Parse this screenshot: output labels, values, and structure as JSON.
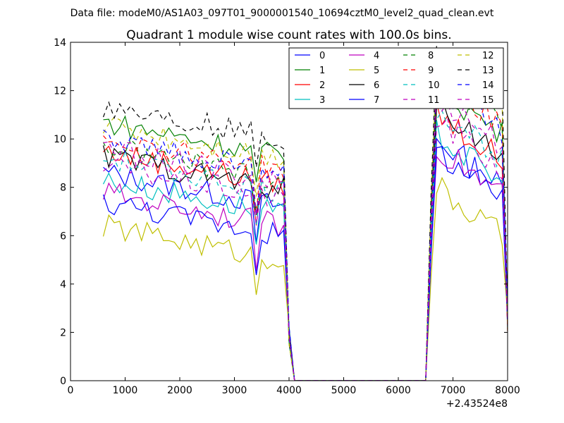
{
  "chart_data": {
    "type": "line",
    "suptitle": "Data file: modeM0/AS1A03_097T01_9000001540_10694cztM0_level2_quad_clean.evt",
    "title": "Quadrant 1 module wise count rates with 100.0s bins.",
    "xlabel": "",
    "ylabel": "",
    "x_offset_label": "+2.43524e8",
    "xlim": [
      0,
      8000
    ],
    "ylim": [
      0,
      14
    ],
    "x_ticks": [
      0,
      1000,
      2000,
      3000,
      4000,
      5000,
      6000,
      7000,
      8000
    ],
    "y_ticks": [
      0,
      2,
      4,
      6,
      8,
      10,
      12,
      14
    ],
    "x_tick_labels": [
      "0",
      "1000",
      "2000",
      "3000",
      "4000",
      "5000",
      "6000",
      "7000",
      "8000"
    ],
    "y_tick_labels": [
      "0",
      "2",
      "4",
      "6",
      "8",
      "10",
      "12",
      "14"
    ],
    "legend_position": "top-right",
    "legend_columns": 4,
    "x": [
      600,
      700,
      800,
      900,
      1000,
      1100,
      1200,
      1300,
      1400,
      1500,
      1600,
      1700,
      1800,
      1900,
      2000,
      2100,
      2200,
      2300,
      2400,
      2500,
      2600,
      2700,
      2800,
      2900,
      3000,
      3100,
      3200,
      3300,
      3400,
      3500,
      3600,
      3700,
      3800,
      3900,
      4000,
      4100,
      4200,
      4300,
      4400,
      4500,
      4600,
      4700,
      4800,
      4900,
      5000,
      5100,
      5200,
      5300,
      5400,
      5500,
      5600,
      5700,
      5800,
      5900,
      6000,
      6100,
      6200,
      6300,
      6400,
      6500,
      6600,
      6700,
      6800,
      6900,
      7000,
      7100,
      7200,
      7300,
      7400,
      7500,
      7600,
      7700,
      7800,
      7900,
      8000
    ],
    "series": [
      {
        "name": "0",
        "color": "#0000ff",
        "dash": "solid",
        "base": 8.6,
        "b2": 9.2
      },
      {
        "name": "1",
        "color": "#008000",
        "dash": "solid",
        "base": 10.7,
        "b2": 11.4
      },
      {
        "name": "2",
        "color": "#ff0000",
        "dash": "solid",
        "base": 9.5,
        "b2": 10.3
      },
      {
        "name": "3",
        "color": "#00bfbf",
        "dash": "solid",
        "base": 8.3,
        "b2": 9.4
      },
      {
        "name": "4",
        "color": "#bf00bf",
        "dash": "solid",
        "base": 7.8,
        "b2": 8.9
      },
      {
        "name": "5",
        "color": "#bfbf00",
        "dash": "solid",
        "base": 6.4,
        "b2": 7.2
      },
      {
        "name": "6",
        "color": "#000000",
        "dash": "solid",
        "base": 9.3,
        "b2": 10.6
      },
      {
        "name": "7",
        "color": "#0000ff",
        "dash": "solid",
        "base": 7.4,
        "b2": 8.7
      },
      {
        "name": "8",
        "color": "#008000",
        "dash": "dashed",
        "base": 9.7,
        "b2": 12.0
      },
      {
        "name": "9",
        "color": "#ff0000",
        "dash": "dashed",
        "base": 10.1,
        "b2": 11.8
      },
      {
        "name": "10",
        "color": "#00bfbf",
        "dash": "dashed",
        "base": 9.2,
        "b2": 10.5
      },
      {
        "name": "11",
        "color": "#bf00bf",
        "dash": "dashed",
        "base": 8.9,
        "b2": 10.0
      },
      {
        "name": "12",
        "color": "#bfbf00",
        "dash": "dashed",
        "base": 10.6,
        "b2": 12.6
      },
      {
        "name": "13",
        "color": "#000000",
        "dash": "dashed",
        "base": 11.4,
        "b2": 13.0
      },
      {
        "name": "14",
        "color": "#0000ff",
        "dash": "dashed",
        "base": 10.0,
        "b2": 11.5
      },
      {
        "name": "15",
        "color": "#bf00bf",
        "dash": "dashed",
        "base": 9.6,
        "b2": 11.0
      }
    ]
  }
}
